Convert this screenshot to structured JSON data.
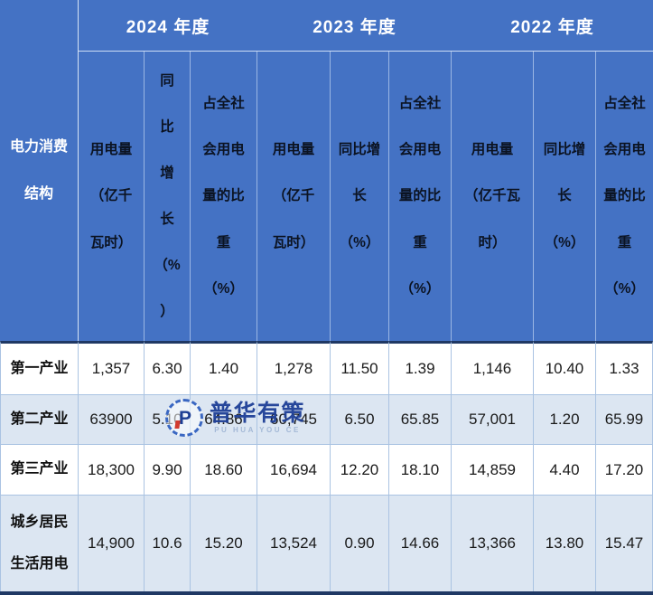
{
  "colors": {
    "header_blue": "#4472C4",
    "navy_line": "#1F3864",
    "alt_row_blue": "#DCE6F2",
    "grid_line_blue": "#AAC3E2",
    "watermark_blue": "#1E3F97",
    "watermark_red": "#D23B2F"
  },
  "watermark": {
    "brand": "普华有策",
    "brand_en": "PU HUA YOU CE",
    "logo_letter": "P"
  },
  "header": {
    "corner": "电力消费\n结构",
    "years": [
      "2024 年度",
      "2023 年度",
      "2022 年度"
    ],
    "sub_wrapped": [
      "用电量\n（亿千\n瓦时）",
      "同\n比\n增\n长\n（%\n）",
      "占全社\n会用电\n量的比\n重\n（%）",
      "用电量\n（亿千\n瓦时）",
      "同比增\n长\n（%）",
      "占全社\n会用电\n量的比\n重\n（%）",
      "用电量\n（亿千瓦\n时）",
      "同比增\n长\n（%）",
      "占全社\n会用电\n量的比\n重\n（%）"
    ]
  },
  "rows_display": {
    "r4_label": "城乡居民\n生活用电"
  },
  "chart_data": {
    "type": "table",
    "row_dimension": "电力消费结构",
    "year_groups": [
      {
        "year": "2024 年度",
        "columns": [
          "用电量（亿千瓦时）",
          "同比增长（%）",
          "占全社会用电量的比重（%）"
        ]
      },
      {
        "year": "2023 年度",
        "columns": [
          "用电量（亿千瓦时）",
          "同比增长（%）",
          "占全社会用电量的比重（%）"
        ]
      },
      {
        "year": "2022 年度",
        "columns": [
          "用电量（亿千瓦时）",
          "同比增长（%）",
          "占全社会用电量的比重（%）"
        ]
      }
    ],
    "rows": [
      {
        "label": "第一产业",
        "values": [
          "1,357",
          "6.30",
          "1.40",
          "1,278",
          "11.50",
          "1.39",
          "1,146",
          "10.40",
          "1.33"
        ]
      },
      {
        "label": "第二产业",
        "values": [
          "63900",
          "5.10",
          "64.86",
          "60,745",
          "6.50",
          "65.85",
          "57,001",
          "1.20",
          "65.99"
        ]
      },
      {
        "label": "第三产业",
        "values": [
          "18,300",
          "9.90",
          "18.60",
          "16,694",
          "12.20",
          "18.10",
          "14,859",
          "4.40",
          "17.20"
        ]
      },
      {
        "label": "城乡居民生活用电",
        "values": [
          "14,900",
          "10.6",
          "15.20",
          "13,524",
          "0.90",
          "14.66",
          "13,366",
          "13.80",
          "15.47"
        ]
      }
    ]
  }
}
